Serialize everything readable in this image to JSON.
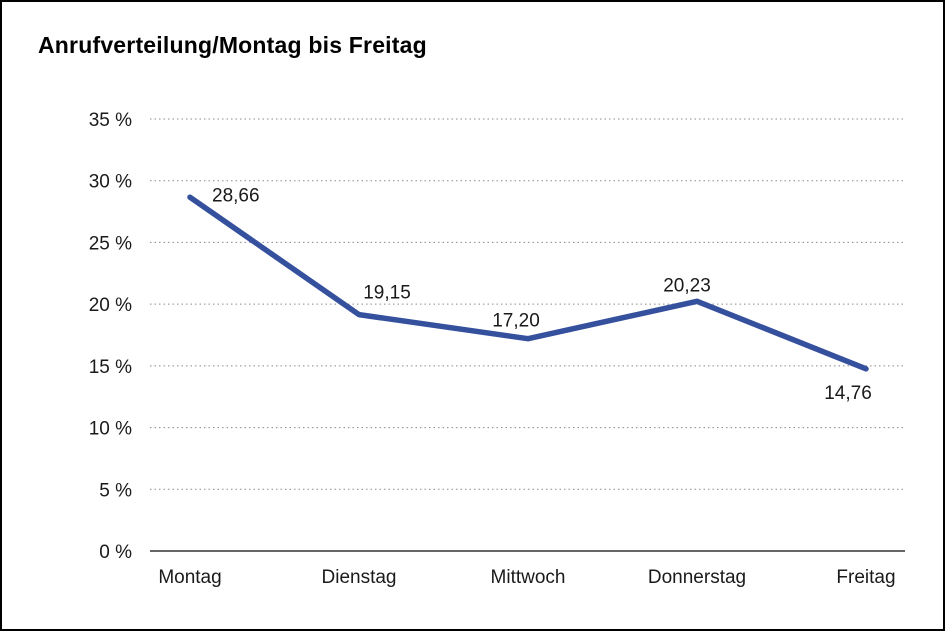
{
  "page": {
    "background": "#ffffff",
    "border_color": "#000000"
  },
  "chart_data": {
    "type": "line",
    "title": "Anrufverteilung/Montag bis Freitag",
    "categories": [
      "Montag",
      "Dienstag",
      "Mittwoch",
      "Donnerstag",
      "Freitag"
    ],
    "values": [
      28.66,
      19.15,
      17.2,
      20.23,
      14.76
    ],
    "value_labels": [
      "28,66",
      "19,15",
      "17,20",
      "20,23",
      "14,76"
    ],
    "y_ticks": [
      {
        "value": 35,
        "label": "35 %"
      },
      {
        "value": 30,
        "label": "30 %"
      },
      {
        "value": 25,
        "label": "25 %"
      },
      {
        "value": 20,
        "label": "20 %"
      },
      {
        "value": 15,
        "label": "15 %"
      },
      {
        "value": 10,
        "label": "10 %"
      },
      {
        "value": 5,
        "label": "5 %"
      },
      {
        "value": 0,
        "label": "0 %"
      }
    ],
    "ylim": [
      0,
      35
    ],
    "grid": "horizontal-dotted",
    "legend": "none",
    "line_color": "#35519e",
    "gridline_color": "#8a8a8a",
    "axis_color": "#333333",
    "label_color": "#1a1a1a"
  }
}
